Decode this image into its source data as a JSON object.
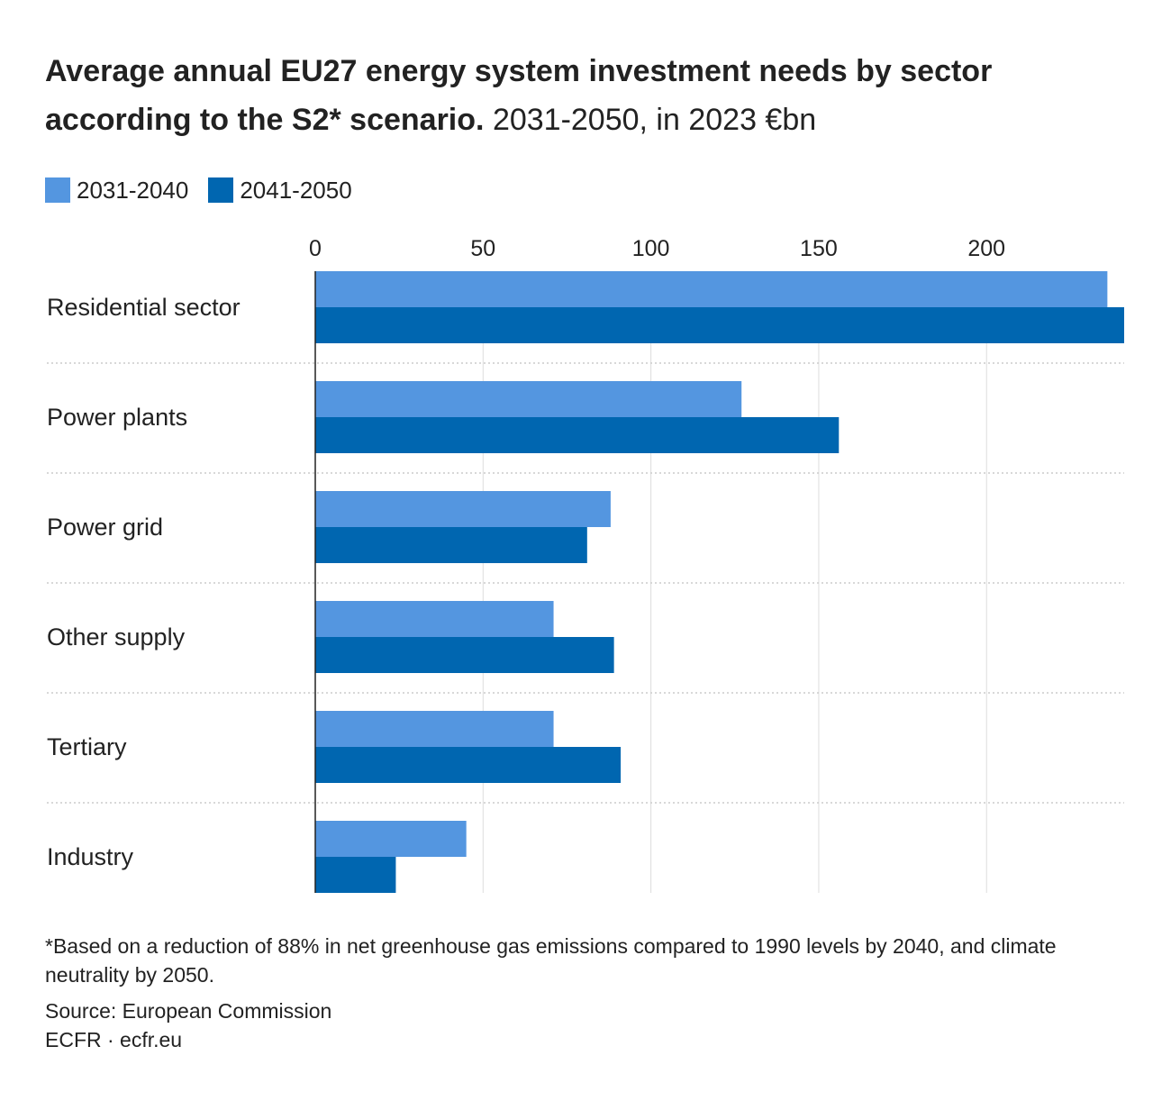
{
  "header": {
    "title": "Average annual EU27 energy system investment needs by sector according to the S2* scenario.",
    "subtitle": "2031-2050, in 2023 €bn"
  },
  "footer": {
    "footnote": "*Based on a reduction of 88% in net greenhouse gas emissions compared to 1990 levels by 2040, and climate neutrality by 2050.",
    "source": "Source: European Commission",
    "credit": "ECFR · ecfr.eu"
  },
  "colors": {
    "series_light": "#5496e0",
    "series_dark": "#0066b0",
    "grid": "#dddddd",
    "axis": "#222222",
    "text": "#222222"
  },
  "chart_data": {
    "type": "bar",
    "orientation": "horizontal",
    "categories": [
      "Residential sector",
      "Power plants",
      "Power grid",
      "Other supply",
      "Tertiary",
      "Industry"
    ],
    "series": [
      {
        "name": "2031-2040",
        "values": [
          236,
          127,
          88,
          71,
          71,
          45
        ]
      },
      {
        "name": "2041-2050",
        "values": [
          241,
          156,
          81,
          89,
          91,
          24
        ]
      }
    ],
    "xticks": [
      0,
      50,
      100,
      150,
      200
    ],
    "xlim": [
      0,
      241
    ],
    "axis_position": "top",
    "grid": true,
    "legend_position": "top-left"
  }
}
